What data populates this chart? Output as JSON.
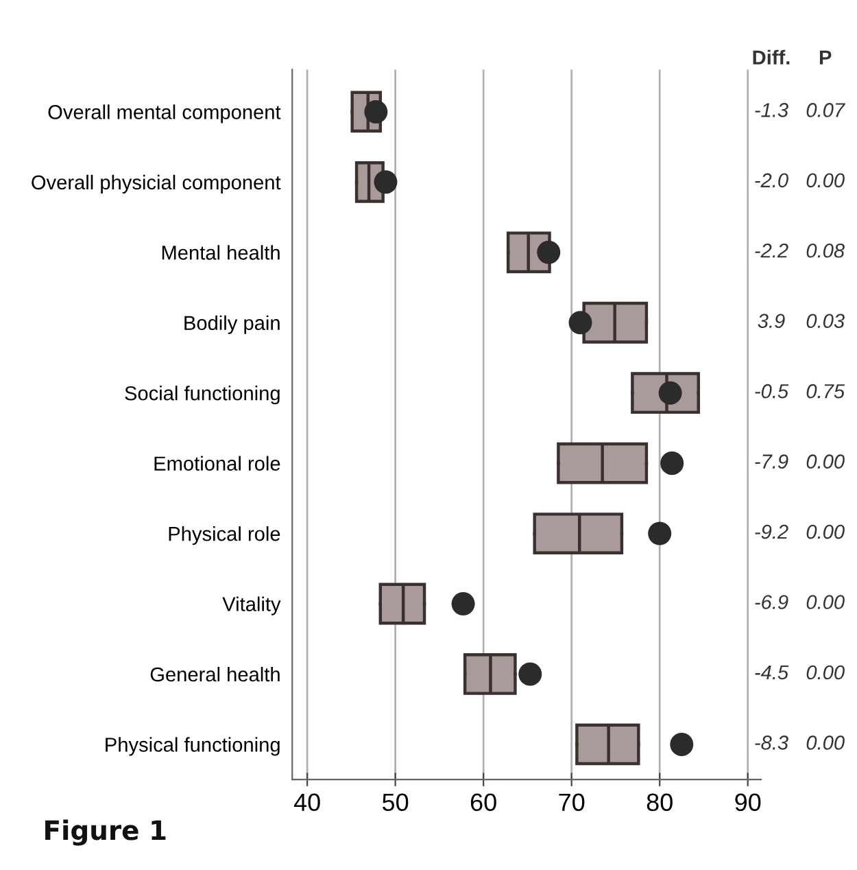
{
  "chart_data": {
    "type": "box",
    "orientation": "horizontal",
    "categories": [
      "Overall mental component",
      "Overall physicial component",
      "Mental health",
      "Bodily pain",
      "Social functioning",
      "Emotional role",
      "Physical role",
      "Vitality",
      "General health",
      "Physical functioning"
    ],
    "boxes": [
      {
        "low": 45.1,
        "q1": 45.1,
        "median": 46.9,
        "q3": 48.3,
        "high": 48.3
      },
      {
        "low": 45.6,
        "q1": 45.6,
        "median": 47.0,
        "q3": 48.6,
        "high": 48.6
      },
      {
        "low": 62.8,
        "q1": 62.8,
        "median": 65.1,
        "q3": 67.5,
        "high": 67.5
      },
      {
        "low": 71.4,
        "q1": 71.4,
        "median": 74.9,
        "q3": 78.5,
        "high": 78.5
      },
      {
        "low": 76.9,
        "q1": 76.9,
        "median": 80.8,
        "q3": 84.4,
        "high": 84.4
      },
      {
        "low": 68.5,
        "q1": 68.5,
        "median": 73.5,
        "q3": 78.5,
        "high": 78.5
      },
      {
        "low": 65.8,
        "q1": 65.8,
        "median": 70.9,
        "q3": 75.7,
        "high": 75.7
      },
      {
        "low": 48.3,
        "q1": 48.3,
        "median": 50.9,
        "q3": 53.3,
        "high": 53.3
      },
      {
        "low": 57.9,
        "q1": 57.9,
        "median": 60.8,
        "q3": 63.6,
        "high": 63.6
      },
      {
        "low": 70.6,
        "q1": 70.6,
        "median": 74.2,
        "q3": 77.6,
        "high": 77.6
      }
    ],
    "color": "#a99b99",
    "series": [
      {
        "type": "scatter",
        "color": "#2b2b2b",
        "x": [
          "Overall mental component",
          "Overall physicial component",
          "Mental health",
          "Bodily pain",
          "Social functioning",
          "Emotional role",
          "Physical role",
          "Vitality",
          "General health",
          "Physical functioning"
        ],
        "values": [
          47.8,
          48.9,
          67.4,
          71.0,
          81.2,
          81.4,
          80.0,
          57.7,
          65.3,
          82.5
        ]
      }
    ],
    "marker": "circle",
    "xlim": [
      38.3,
      91.5
    ],
    "xticks": [
      40,
      50,
      60,
      70,
      80,
      90
    ],
    "grid": "x",
    "annotations": [
      "Diff.",
      "P",
      "-1.3",
      "0.07",
      "-2.0",
      "0.00",
      "-2.2",
      "0.08",
      "3.9",
      "0.03",
      "-0.5",
      "0.75",
      "-7.9",
      "0.00",
      "-9.2",
      "0.00",
      "-6.9",
      "0.00",
      "-4.5",
      "0.00",
      "-8.3",
      "0.00",
      "Figure 1"
    ]
  }
}
